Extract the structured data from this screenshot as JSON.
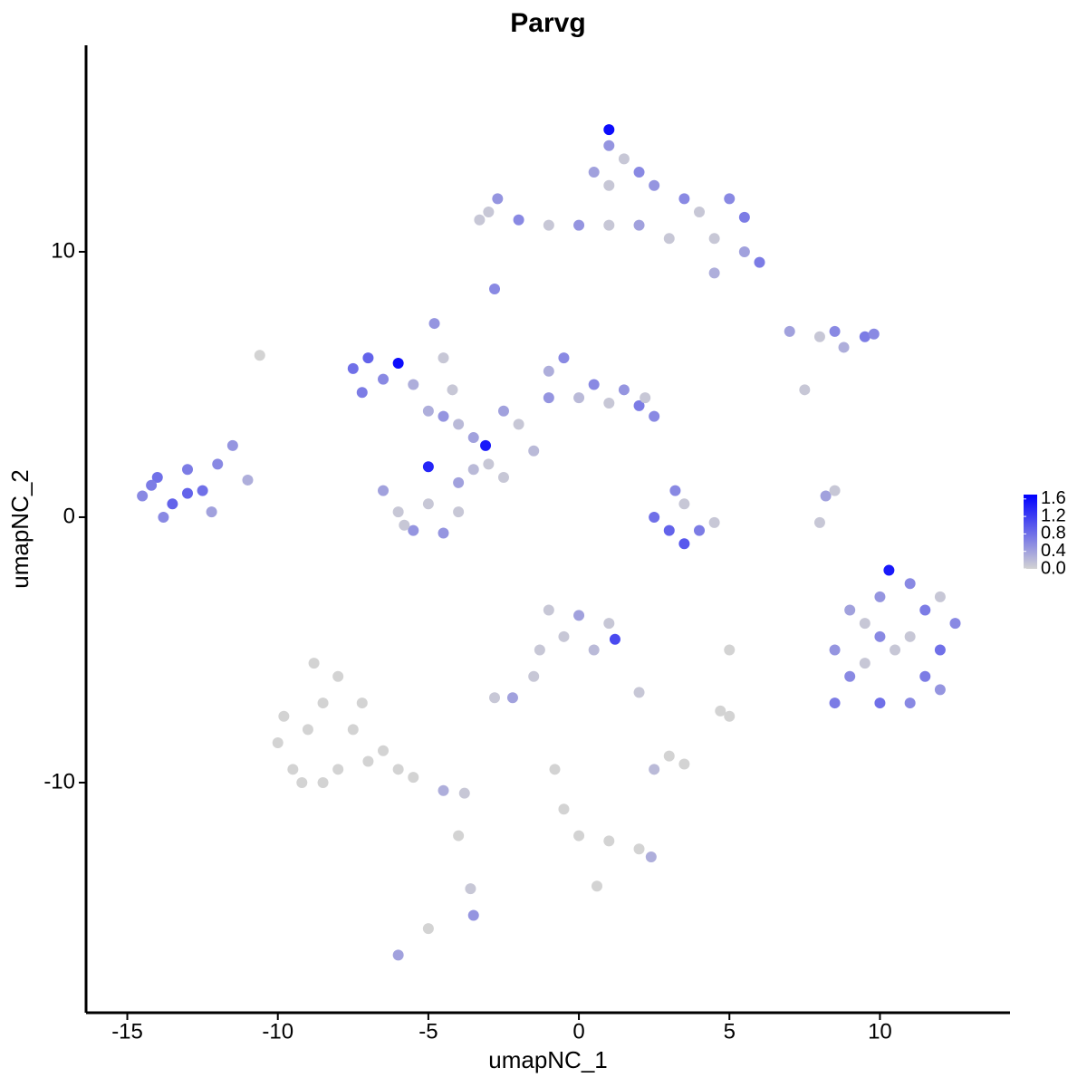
{
  "chart_data": {
    "type": "scatter",
    "title": "Parvg",
    "x_label": "umapNC_1",
    "y_label": "umapNC_2",
    "xlim": [
      -16.37,
      14.32
    ],
    "ylim": [
      -18.67,
      17.78
    ],
    "xticks": [
      -15,
      -10,
      -5,
      0,
      5,
      10
    ],
    "yticks": [
      -10,
      0,
      10
    ],
    "colorbar": {
      "lim": [
        0,
        1.7
      ],
      "ticks": [
        {
          "value": 0,
          "label": "0.0"
        },
        0.4,
        0.8,
        1.2,
        1.6
      ],
      "low_color": "#d3d3d3",
      "high_color": "#0000ff"
    },
    "x": [
      -14.5,
      -14,
      -13.5,
      -13,
      -12.5,
      -13.8,
      -12,
      -11.5,
      -12.2,
      -11,
      -13,
      -14.2,
      -7.5,
      -7,
      -6.5,
      -6,
      -7.2,
      -5.5,
      -5,
      -4.5,
      -4,
      -3.5,
      -4.8,
      -4.5,
      -4.2,
      -2.5,
      -2,
      -1,
      -1,
      -0.5,
      0,
      0.5,
      1,
      1.5,
      2,
      2.5,
      2.2,
      -3.1,
      -1.5,
      -3,
      -2.5,
      -6.5,
      -6,
      -5.5,
      -5,
      -4.5,
      -4,
      -5,
      -4,
      -5.8,
      -3.5,
      1,
      1,
      1.5,
      2,
      1,
      0.5,
      2.5,
      3.5,
      4,
      5,
      5.5,
      4.5,
      5.5,
      6,
      4.5,
      3,
      2,
      1,
      0,
      -1,
      -2,
      -3,
      -2.7,
      -3.3,
      -2.8,
      7,
      8,
      8.5,
      9.5,
      9.8,
      8.8,
      7.5,
      2.5,
      3,
      3.5,
      4,
      4.5,
      3.2,
      3.5,
      8,
      8.2,
      8.5,
      8.5,
      9,
      8.5,
      9.5,
      10,
      10.3,
      11,
      11.5,
      12,
      12.5,
      12,
      11.5,
      11,
      10,
      10.5,
      10,
      9.5,
      11,
      9,
      12,
      -1,
      0,
      1,
      0.5,
      1.2,
      -0.5,
      -1.5,
      -2.2,
      -2.8,
      -1.3,
      2,
      -10,
      -9.5,
      -9,
      -8.5,
      -8.8,
      -8,
      -7.5,
      -8,
      -7,
      -6.5,
      -6,
      -5.5,
      -4.5,
      -3.8,
      -9.8,
      -7.2,
      -8.5,
      -9.2,
      -3.6,
      -3.5,
      -4,
      -6,
      -5,
      -0.8,
      -0.5,
      0,
      1,
      2,
      2.4,
      2.5,
      3,
      3.5,
      4.7,
      5,
      0.6,
      5,
      -10.6
    ],
    "y": [
      0.8,
      1.5,
      0.5,
      1.8,
      1,
      0,
      2,
      2.7,
      0.2,
      1.4,
      0.9,
      1.2,
      5.6,
      6,
      5.2,
      5.8,
      4.7,
      5,
      4,
      3.8,
      3.5,
      3,
      7.3,
      6,
      4.8,
      4,
      3.5,
      4.5,
      5.5,
      6,
      4.5,
      5,
      4.3,
      4.8,
      4.2,
      3.8,
      4.5,
      2.7,
      2.5,
      2,
      1.5,
      1,
      0.2,
      -0.5,
      0.5,
      -0.6,
      0.2,
      1.9,
      1.3,
      -0.3,
      1.8,
      14.6,
      14,
      13.5,
      13,
      12.5,
      13,
      12.5,
      12,
      11.5,
      12,
      11.3,
      10.5,
      10,
      9.6,
      9.2,
      10.5,
      11,
      11,
      11,
      11,
      11.2,
      11.5,
      12,
      11.2,
      8.6,
      7,
      6.8,
      7,
      6.8,
      6.9,
      6.4,
      4.8,
      0,
      -0.5,
      -1,
      -0.5,
      -0.2,
      1,
      0.5,
      -0.2,
      0.8,
      1,
      -5,
      -6,
      -7,
      -4,
      -3,
      -2,
      -2.5,
      -3.5,
      -3,
      -4,
      -5,
      -6,
      -7,
      -7,
      -5,
      -4.5,
      -5.5,
      -4.5,
      -3.5,
      -6.5,
      -3.5,
      -3.7,
      -4,
      -5,
      -4.6,
      -4.5,
      -6,
      -6.8,
      -6.8,
      -5,
      -6.6,
      -8.5,
      -9.5,
      -8,
      -7,
      -5.5,
      -6,
      -8,
      -9.5,
      -9.2,
      -8.8,
      -9.5,
      -9.8,
      -10.3,
      -10.4,
      -7.5,
      -7,
      -10,
      -10,
      -14,
      -15,
      -12,
      -16.5,
      -15.5,
      -9.5,
      -11,
      -12,
      -12.2,
      -12.5,
      -12.8,
      -9.5,
      -9,
      -9.3,
      -7.3,
      -5,
      -13.9,
      -7.5,
      6.1
    ],
    "values": [
      0.6,
      0.8,
      0.9,
      0.7,
      0.8,
      0.6,
      0.6,
      0.5,
      0.4,
      0.3,
      0.9,
      0.7,
      0.8,
      0.9,
      0.6,
      1.6,
      0.7,
      0.3,
      0.3,
      0.5,
      0.2,
      0.4,
      0.5,
      0.1,
      0.1,
      0.4,
      0.1,
      0.5,
      0.3,
      0.6,
      0.2,
      0.6,
      0.1,
      0.5,
      0.7,
      0.6,
      0.1,
      1.5,
      0.2,
      0.1,
      0.1,
      0.4,
      0.1,
      0.5,
      0.1,
      0.5,
      0.1,
      1.4,
      0.4,
      0.1,
      0.2,
      1.6,
      0.5,
      0.1,
      0.6,
      0.1,
      0.4,
      0.5,
      0.6,
      0.1,
      0.6,
      0.7,
      0.1,
      0.4,
      0.7,
      0.3,
      0.1,
      0.4,
      0.1,
      0.5,
      0.1,
      0.6,
      0.1,
      0.5,
      0.1,
      0.6,
      0.4,
      0.1,
      0.6,
      0.7,
      0.6,
      0.3,
      0.1,
      0.8,
      0.9,
      1,
      0.7,
      0.1,
      0.6,
      0.1,
      0.1,
      0.4,
      0.1,
      0.5,
      0.6,
      0.7,
      0.1,
      0.5,
      1.5,
      0.6,
      0.7,
      0.1,
      0.6,
      0.8,
      0.7,
      0.6,
      0.8,
      0.1,
      0.6,
      0.1,
      0.1,
      0.4,
      0.5,
      0.1,
      0.4,
      0.1,
      0.2,
      1.1,
      0.1,
      0.1,
      0.4,
      0.1,
      0.1,
      0.1,
      0,
      0,
      0,
      0,
      0,
      0,
      0,
      0,
      0,
      0,
      0,
      0,
      0.3,
      0.1,
      0,
      0,
      0,
      0,
      0.1,
      0.5,
      0,
      0.4,
      0,
      0,
      0,
      0,
      0,
      0,
      0.3,
      0.2,
      0,
      0,
      0,
      0,
      0,
      0,
      0
    ]
  }
}
